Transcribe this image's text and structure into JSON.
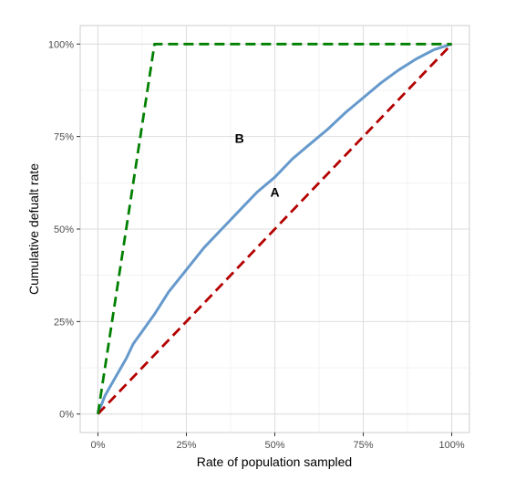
{
  "chart_data": {
    "type": "line",
    "xlabel": "Rate of population sampled",
    "ylabel": "Cumulative defualt rate",
    "xlim": [
      -0.05,
      1.05
    ],
    "ylim": [
      -0.05,
      1.05
    ],
    "x_ticks": [
      0,
      0.25,
      0.5,
      0.75,
      1
    ],
    "x_tick_labels": [
      "0%",
      "25%",
      "50%",
      "75%",
      "100%"
    ],
    "y_ticks": [
      0,
      0.25,
      0.5,
      0.75,
      1
    ],
    "y_tick_labels": [
      "0%",
      "25%",
      "50%",
      "75%",
      "100%"
    ],
    "minor_ticks": [
      0.125,
      0.375,
      0.625,
      0.875
    ],
    "grid": true,
    "legend": "none",
    "series": [
      {
        "style": "solid",
        "color": "#6699cc",
        "x": [
          0,
          0.02,
          0.05,
          0.08,
          0.1,
          0.13,
          0.16,
          0.2,
          0.25,
          0.3,
          0.35,
          0.4,
          0.45,
          0.5,
          0.55,
          0.6,
          0.65,
          0.7,
          0.75,
          0.8,
          0.85,
          0.9,
          0.95,
          1
        ],
        "y": [
          0,
          0.05,
          0.1,
          0.15,
          0.19,
          0.23,
          0.27,
          0.33,
          0.39,
          0.45,
          0.5,
          0.55,
          0.6,
          0.64,
          0.69,
          0.73,
          0.77,
          0.815,
          0.855,
          0.895,
          0.93,
          0.96,
          0.985,
          1
        ]
      },
      {
        "style": "dashed",
        "color": "#008000",
        "x": [
          0,
          0.16,
          1
        ],
        "y": [
          0,
          1,
          1
        ]
      },
      {
        "style": "dashed",
        "color": "#b30000",
        "x": [
          0,
          1
        ],
        "y": [
          0,
          1
        ]
      }
    ],
    "annotations": [
      {
        "text": "B",
        "x": 0.4,
        "y": 0.745
      },
      {
        "text": "A",
        "x": 0.5,
        "y": 0.6
      }
    ]
  }
}
